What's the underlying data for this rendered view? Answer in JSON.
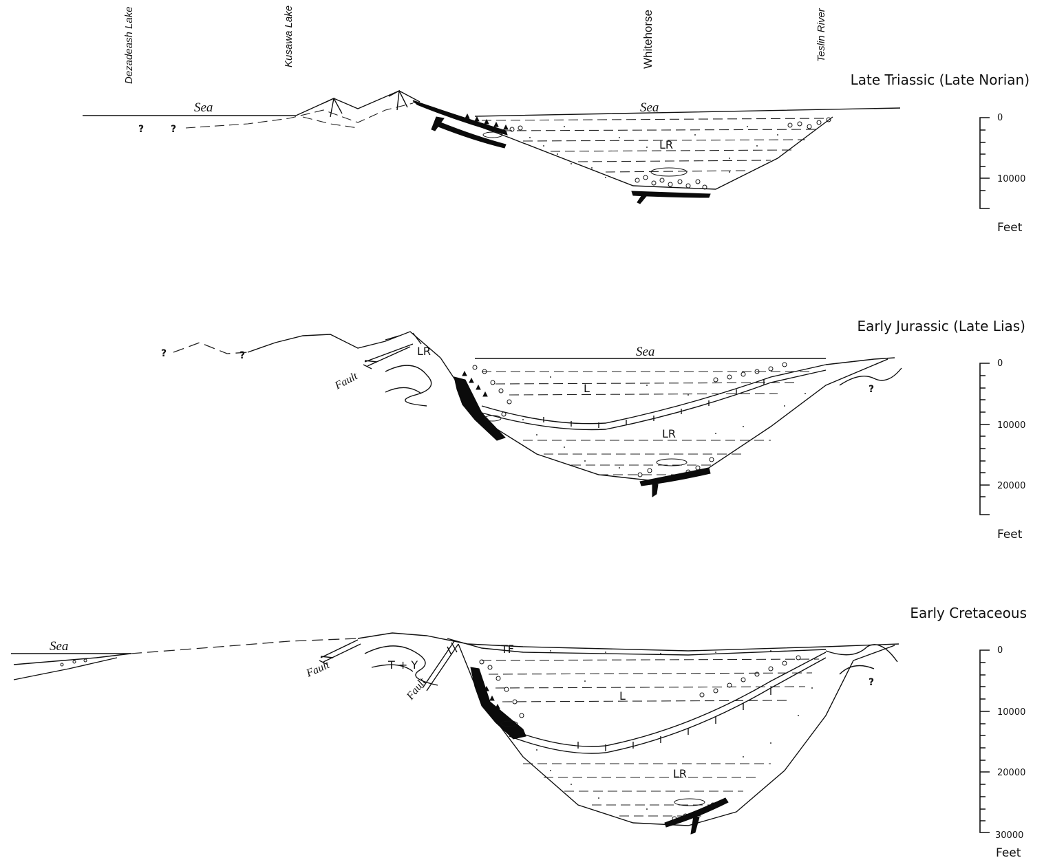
{
  "locations": [
    "Dezadeash Lake",
    "Kusawa Lake",
    "Whitehorse",
    "Teslin River"
  ],
  "sections": [
    {
      "title": "Late Triassic (Late Norian)",
      "scale_ticks": [
        "0",
        "10000"
      ],
      "scale_unit": "Feet",
      "labels": {
        "sea_left": "Sea",
        "sea_right": "Sea",
        "unit": "LR"
      },
      "question_marks": [
        "?",
        "?"
      ]
    },
    {
      "title": "Early Jurassic (Late Lias)",
      "scale_ticks": [
        "0",
        "10000",
        "20000"
      ],
      "scale_unit": "Feet",
      "labels": {
        "sea": "Sea",
        "fault": "Fault",
        "unit_upper": "L",
        "unit_lower": "LR",
        "unit_source": "LR"
      },
      "question_marks": [
        "?",
        "?",
        "?"
      ]
    },
    {
      "title": "Early Cretaceous",
      "scale_ticks": [
        "0",
        "10000",
        "20000",
        "30000"
      ],
      "scale_unit": "Feet",
      "labels": {
        "sea": "Sea",
        "fault_left": "Fault",
        "fault_right": "Fault",
        "unit_top": "TF",
        "unit_upper": "L",
        "unit_lower": "LR",
        "unit_source": "T + Y"
      },
      "question_marks": [
        "?"
      ]
    }
  ],
  "colors": {
    "ink": "#111111",
    "background": "#ffffff"
  }
}
